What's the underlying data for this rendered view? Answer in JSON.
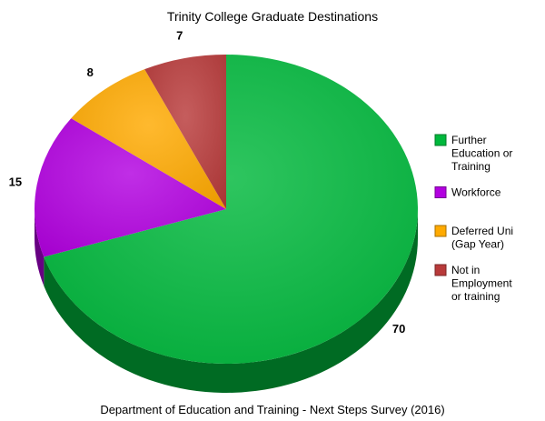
{
  "chart_data": {
    "type": "pie",
    "title": "Trinity College Graduate Destinations",
    "source": "Department of Education and Training - Next Steps Survey (2016)",
    "three_d": true,
    "legend_position": "right",
    "slices": [
      {
        "label": "Further Education or Training",
        "legend_lines": [
          "Further",
          "Education or",
          "Training"
        ],
        "value": 70,
        "color": "#00b83c"
      },
      {
        "label": "Workforce",
        "legend_lines": [
          "Workforce"
        ],
        "value": 15,
        "color": "#b200e0"
      },
      {
        "label": "Deferred Uni (Gap Year)",
        "legend_lines": [
          "Deferred Uni",
          "(Gap Year)"
        ],
        "value": 8,
        "color": "#ffaa00"
      },
      {
        "label": "Not in Employment or training",
        "legend_lines": [
          "Not in",
          "Employment",
          "or training"
        ],
        "value": 7,
        "color": "#b83a3a"
      }
    ]
  }
}
